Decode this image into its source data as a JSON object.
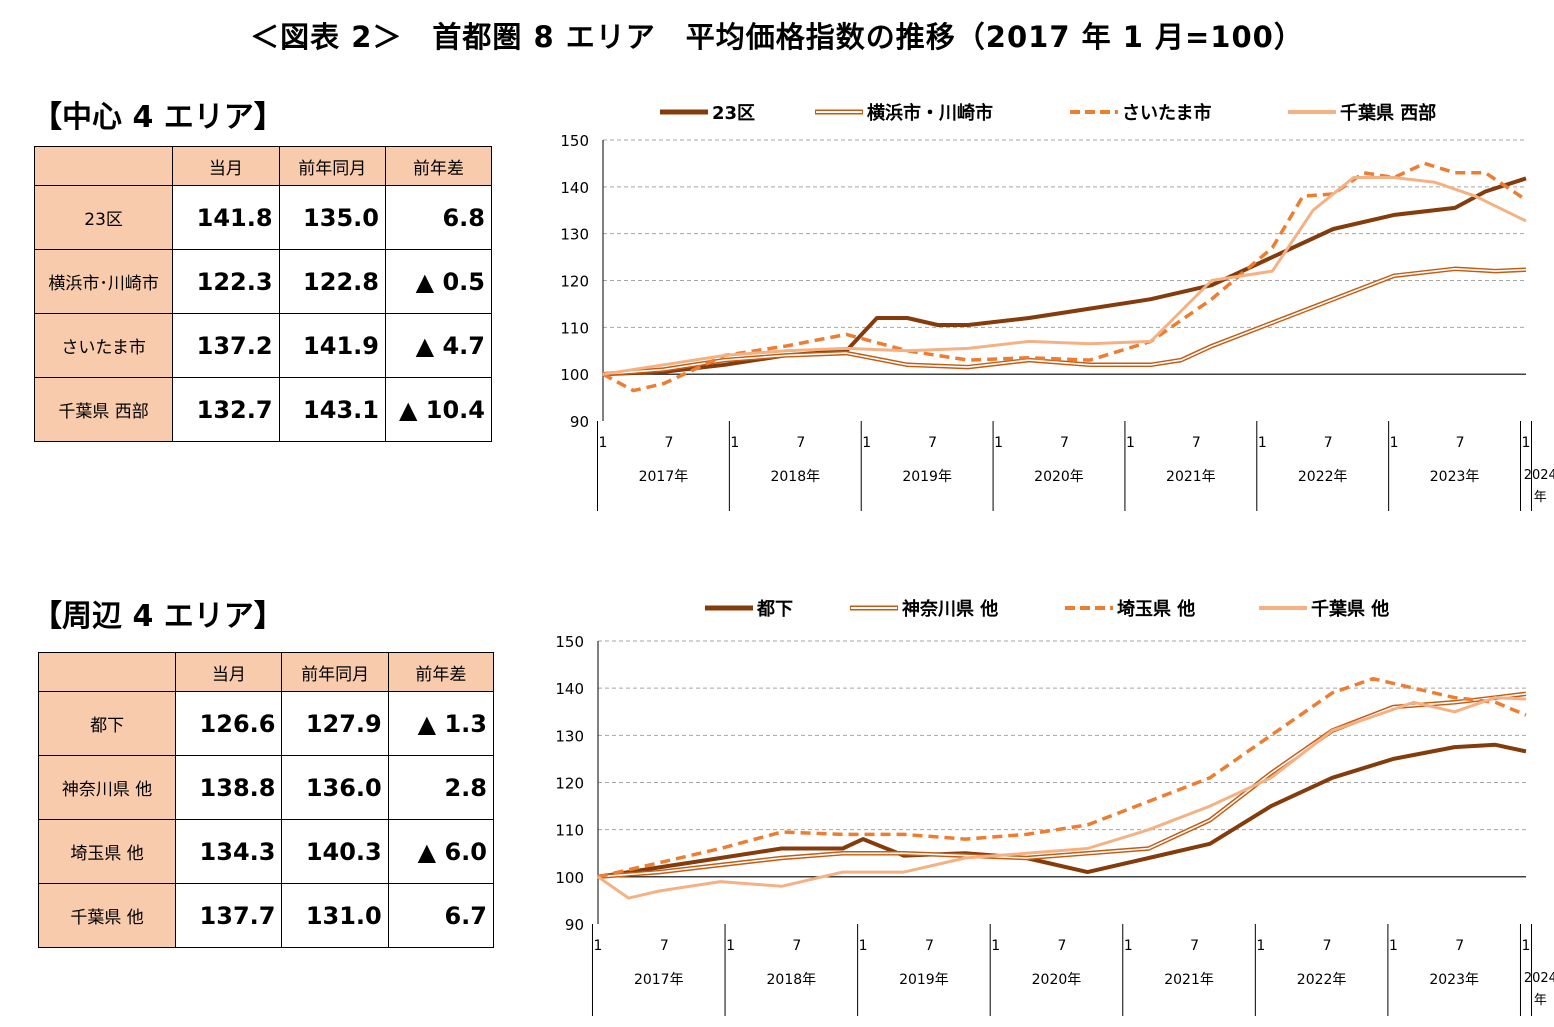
{
  "title": "＜図表 2＞　首都圏 8 エリア　平均価格指数の推移（2017 年 1 月=100）",
  "colors": {
    "dark": "#843c0c",
    "hollow": "#c55a11",
    "dashed": "#ed7d31",
    "light": "#f4b183",
    "header": "#f8cbad"
  },
  "central": {
    "heading": "【中心 4 エリア】",
    "columns": [
      "",
      "当月",
      "前年同月",
      "前年差"
    ],
    "rows": [
      {
        "area": "23区",
        "current": "141.8",
        "prev": "135.0",
        "diff": "6.8"
      },
      {
        "area": "横浜市･川崎市",
        "current": "122.3",
        "prev": "122.8",
        "diff": "▲ 0.5"
      },
      {
        "area": "さいたま市",
        "current": "137.2",
        "prev": "141.9",
        "diff": "▲ 4.7"
      },
      {
        "area": "千葉県 西部",
        "current": "132.7",
        "prev": "143.1",
        "diff": "▲ 10.4"
      }
    ]
  },
  "peripheral": {
    "heading": "【周辺 4 エリア】",
    "columns": [
      "",
      "当月",
      "前年同月",
      "前年差"
    ],
    "rows": [
      {
        "area": "都下",
        "current": "126.6",
        "prev": "127.9",
        "diff": "▲ 1.3"
      },
      {
        "area": "神奈川県 他",
        "current": "138.8",
        "prev": "136.0",
        "diff": "2.8"
      },
      {
        "area": "埼玉県 他",
        "current": "134.3",
        "prev": "140.3",
        "diff": "▲ 6.0"
      },
      {
        "area": "千葉県 他",
        "current": "137.7",
        "prev": "131.0",
        "diff": "6.7"
      }
    ]
  },
  "chart_data": [
    {
      "type": "line",
      "ylim": [
        90,
        150
      ],
      "yticks": [
        90,
        100,
        110,
        120,
        130,
        140,
        150
      ],
      "grid": true,
      "legend_position": "top",
      "months": 85,
      "x_month_ticks": [
        "1",
        "7",
        "1",
        "7",
        "1",
        "7",
        "1",
        "7",
        "1",
        "7",
        "1",
        "7",
        "1",
        "7",
        "1"
      ],
      "year_labels": [
        "2017年",
        "2018年",
        "2019年",
        "2020年",
        "2021年",
        "2022年",
        "2023年",
        "2024年"
      ],
      "series": [
        {
          "name": "23区",
          "style": "thick",
          "color": "#843c0c",
          "points": [
            [
              0,
              100
            ],
            [
              6,
              100.5
            ],
            [
              12,
              102
            ],
            [
              18,
              104
            ],
            [
              24,
              105
            ],
            [
              27,
              112
            ],
            [
              30,
              112
            ],
            [
              33,
              110.5
            ],
            [
              36,
              110.5
            ],
            [
              42,
              112
            ],
            [
              48,
              114
            ],
            [
              54,
              116
            ],
            [
              60,
              119
            ],
            [
              66,
              125
            ],
            [
              72,
              131
            ],
            [
              78,
              134
            ],
            [
              84,
              135.5
            ],
            [
              87,
              139
            ],
            [
              91,
              141.8
            ]
          ]
        },
        {
          "name": "横浜市・川崎市",
          "style": "hollow",
          "color": "#c55a11",
          "points": [
            [
              0,
              100
            ],
            [
              6,
              101
            ],
            [
              12,
              103
            ],
            [
              18,
              104
            ],
            [
              24,
              104.5
            ],
            [
              30,
              102
            ],
            [
              36,
              101.5
            ],
            [
              42,
              103
            ],
            [
              48,
              102
            ],
            [
              54,
              102
            ],
            [
              57,
              103
            ],
            [
              60,
              106
            ],
            [
              66,
              111
            ],
            [
              72,
              116
            ],
            [
              78,
              121
            ],
            [
              84,
              122.5
            ],
            [
              88,
              122
            ],
            [
              91,
              122.3
            ]
          ]
        },
        {
          "name": "さいたま市",
          "style": "dashed",
          "color": "#ed7d31",
          "points": [
            [
              0,
              100
            ],
            [
              3,
              96.5
            ],
            [
              6,
              98
            ],
            [
              12,
              104
            ],
            [
              18,
              106
            ],
            [
              24,
              108.5
            ],
            [
              30,
              105
            ],
            [
              36,
              103
            ],
            [
              42,
              103.5
            ],
            [
              48,
              103
            ],
            [
              54,
              107
            ],
            [
              60,
              116
            ],
            [
              66,
              127
            ],
            [
              69,
              138
            ],
            [
              72,
              138.5
            ],
            [
              75,
              143
            ],
            [
              78,
              142
            ],
            [
              81,
              145
            ],
            [
              84,
              143
            ],
            [
              87,
              143
            ],
            [
              91,
              137.2
            ]
          ]
        },
        {
          "name": "千葉県 西部",
          "style": "light",
          "color": "#f4b183",
          "points": [
            [
              0,
              100
            ],
            [
              6,
              102
            ],
            [
              12,
              104
            ],
            [
              18,
              105
            ],
            [
              24,
              105.5
            ],
            [
              30,
              105
            ],
            [
              36,
              105.5
            ],
            [
              42,
              107
            ],
            [
              48,
              106.5
            ],
            [
              54,
              107
            ],
            [
              60,
              120
            ],
            [
              66,
              122
            ],
            [
              70,
              135
            ],
            [
              74,
              142
            ],
            [
              78,
              142
            ],
            [
              82,
              141
            ],
            [
              86,
              138
            ],
            [
              91,
              132.7
            ]
          ]
        }
      ]
    },
    {
      "type": "line",
      "ylim": [
        90,
        150
      ],
      "yticks": [
        90,
        100,
        110,
        120,
        130,
        140,
        150
      ],
      "grid": true,
      "legend_position": "top",
      "months": 85,
      "x_month_ticks": [
        "1",
        "7",
        "1",
        "7",
        "1",
        "7",
        "1",
        "7",
        "1",
        "7",
        "1",
        "7",
        "1",
        "7",
        "1"
      ],
      "year_labels": [
        "2017年",
        "2018年",
        "2019年",
        "2020年",
        "2021年",
        "2022年",
        "2023年",
        "2024年"
      ],
      "series": [
        {
          "name": "都下",
          "style": "thick",
          "color": "#843c0c",
          "points": [
            [
              0,
              100
            ],
            [
              6,
              102
            ],
            [
              12,
              104
            ],
            [
              18,
              106
            ],
            [
              24,
              106
            ],
            [
              26,
              108
            ],
            [
              30,
              104.5
            ],
            [
              36,
              105
            ],
            [
              42,
              104
            ],
            [
              48,
              101
            ],
            [
              54,
              104
            ],
            [
              60,
              107
            ],
            [
              66,
              115
            ],
            [
              72,
              121
            ],
            [
              78,
              125
            ],
            [
              84,
              127.5
            ],
            [
              88,
              128
            ],
            [
              91,
              126.6
            ]
          ]
        },
        {
          "name": "神奈川県 他",
          "style": "hollow",
          "color": "#c55a11",
          "points": [
            [
              0,
              100
            ],
            [
              6,
              101
            ],
            [
              12,
              102.5
            ],
            [
              18,
              104
            ],
            [
              24,
              105
            ],
            [
              30,
              105
            ],
            [
              36,
              104.5
            ],
            [
              42,
              104
            ],
            [
              48,
              105
            ],
            [
              54,
              106
            ],
            [
              60,
              112
            ],
            [
              66,
              122
            ],
            [
              72,
              131
            ],
            [
              78,
              136
            ],
            [
              84,
              137
            ],
            [
              88,
              138
            ],
            [
              91,
              138.8
            ]
          ]
        },
        {
          "name": "埼玉県 他",
          "style": "dashed",
          "color": "#ed7d31",
          "points": [
            [
              0,
              100
            ],
            [
              6,
              103
            ],
            [
              12,
              106
            ],
            [
              18,
              109.5
            ],
            [
              24,
              109
            ],
            [
              30,
              109
            ],
            [
              36,
              108
            ],
            [
              42,
              109
            ],
            [
              48,
              111
            ],
            [
              54,
              116
            ],
            [
              60,
              121
            ],
            [
              66,
              130
            ],
            [
              72,
              139
            ],
            [
              76,
              142
            ],
            [
              80,
              140
            ],
            [
              84,
              138
            ],
            [
              88,
              137
            ],
            [
              91,
              134.3
            ]
          ]
        },
        {
          "name": "千葉県 他",
          "style": "light",
          "color": "#f4b183",
          "points": [
            [
              0,
              100
            ],
            [
              3,
              95.5
            ],
            [
              6,
              97
            ],
            [
              12,
              99
            ],
            [
              18,
              98
            ],
            [
              24,
              101
            ],
            [
              30,
              101
            ],
            [
              36,
              104
            ],
            [
              42,
              105
            ],
            [
              48,
              106
            ],
            [
              54,
              110
            ],
            [
              60,
              115
            ],
            [
              66,
              121
            ],
            [
              72,
              131
            ],
            [
              76,
              134
            ],
            [
              80,
              137
            ],
            [
              84,
              135
            ],
            [
              88,
              138
            ],
            [
              91,
              137.7
            ]
          ]
        }
      ]
    }
  ]
}
